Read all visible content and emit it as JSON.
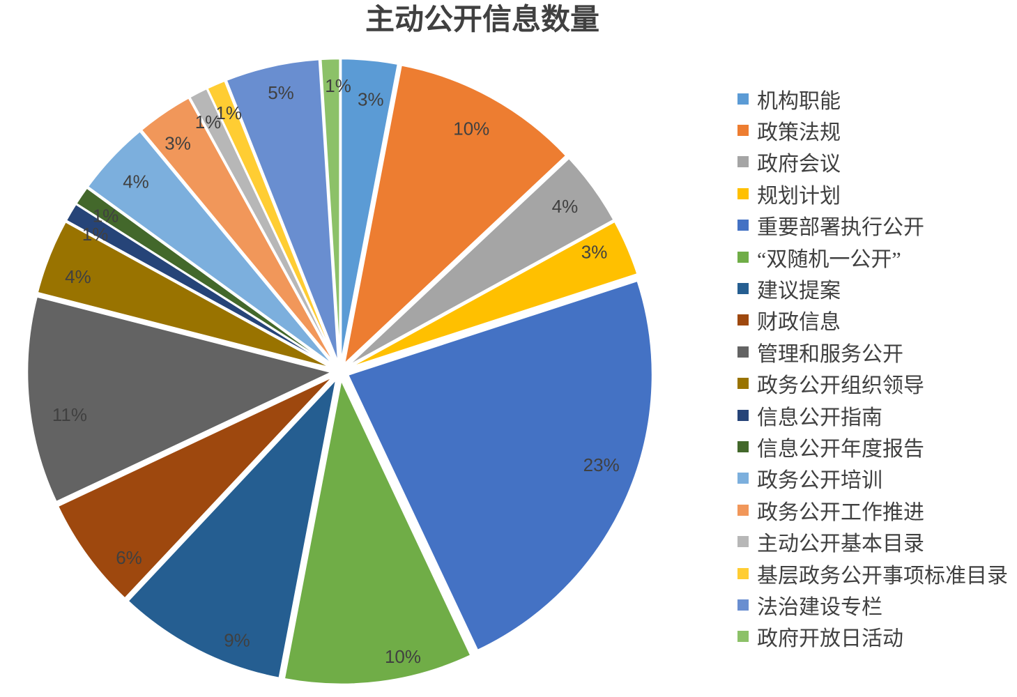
{
  "chart_data": {
    "type": "pie",
    "title": "主动公开信息数量",
    "start_angle_deg": 0,
    "direction": "clockwise",
    "exploded": true,
    "legend_position": "right",
    "label_color": "#404040",
    "slices": [
      {
        "label": "机构职能",
        "value": 3,
        "pct_label": "3%",
        "color": "#5B9BD5"
      },
      {
        "label": "政策法规",
        "value": 10,
        "pct_label": "10%",
        "color": "#ED7D31"
      },
      {
        "label": "政府会议",
        "value": 4,
        "pct_label": "4%",
        "color": "#A5A5A5"
      },
      {
        "label": "规划计划",
        "value": 3,
        "pct_label": "3%",
        "color": "#FFC000"
      },
      {
        "label": "重要部署执行公开",
        "value": 23,
        "pct_label": "23%",
        "color": "#4472C4"
      },
      {
        "label": "“双随机一公开”",
        "value": 10,
        "pct_label": "10%",
        "color": "#70AD47"
      },
      {
        "label": "建议提案",
        "value": 9,
        "pct_label": "9%",
        "color": "#255E91"
      },
      {
        "label": "财政信息",
        "value": 6,
        "pct_label": "6%",
        "color": "#9E480E"
      },
      {
        "label": "管理和服务公开",
        "value": 11,
        "pct_label": "11%",
        "color": "#636363"
      },
      {
        "label": "政务公开组织领导",
        "value": 4,
        "pct_label": "4%",
        "color": "#997300"
      },
      {
        "label": "信息公开指南",
        "value": 1,
        "pct_label": "1%",
        "color": "#264478"
      },
      {
        "label": "信息公开年度报告",
        "value": 1,
        "pct_label": "1%",
        "color": "#43682B"
      },
      {
        "label": "政务公开培训",
        "value": 4,
        "pct_label": "4%",
        "color": "#7CAFDD"
      },
      {
        "label": "政务公开工作推进",
        "value": 3,
        "pct_label": "3%",
        "color": "#F1975A"
      },
      {
        "label": "主动公开基本目录",
        "value": 1,
        "pct_label": "1%",
        "color": "#B7B7B7"
      },
      {
        "label": "基层政务公开事项标准目录",
        "value": 1,
        "pct_label": "1%",
        "color": "#FFCD33"
      },
      {
        "label": "法治建设专栏",
        "value": 5,
        "pct_label": "5%",
        "color": "#698ED0"
      },
      {
        "label": "政府开放日活动",
        "value": 1,
        "pct_label": "1%",
        "color": "#8CC168"
      }
    ]
  }
}
